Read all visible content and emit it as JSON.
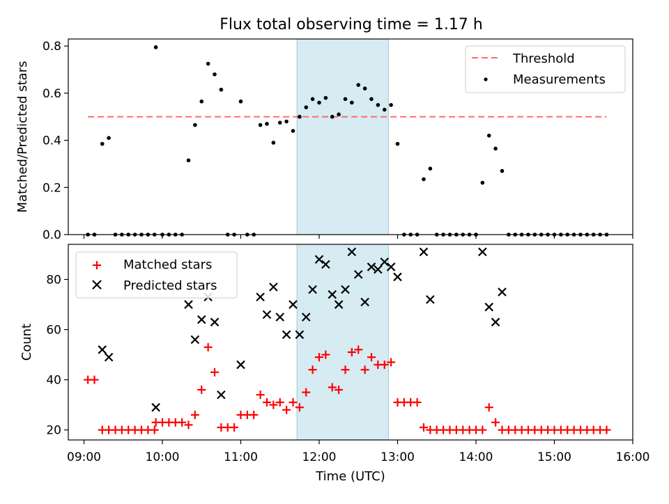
{
  "title": "Flux total observing time = 1.17 h",
  "chart_data": [
    {
      "type": "scatter",
      "panel": "top",
      "ylabel": "Matched/Predicted stars",
      "ylim": [
        0,
        0.83
      ],
      "yticks": [
        0.0,
        0.2,
        0.4,
        0.6,
        0.8
      ],
      "ytick_labels": [
        "0.0",
        "0.2",
        "0.4",
        "0.6",
        "0.8"
      ],
      "xlim": [
        "08:48",
        "16:00"
      ],
      "highlight_span": [
        "11:43",
        "12:53"
      ],
      "highlight_color": "#add8e6",
      "threshold": {
        "name": "Threshold",
        "value": 0.5,
        "x": [
          "09:03",
          "15:40"
        ],
        "color": "#ff6b6b"
      },
      "legend": {
        "position": "top-right",
        "entries": [
          "Threshold",
          "Measurements"
        ]
      },
      "series": [
        {
          "name": "Measurements",
          "color": "#000000",
          "marker": "dot",
          "points": [
            [
              "09:03",
              0
            ],
            [
              "09:08",
              0
            ],
            [
              "09:14",
              0.385
            ],
            [
              "09:19",
              0.41
            ],
            [
              "09:24",
              0
            ],
            [
              "09:29",
              0
            ],
            [
              "09:34",
              0
            ],
            [
              "09:39",
              0
            ],
            [
              "09:44",
              0
            ],
            [
              "09:49",
              0
            ],
            [
              "09:54",
              0
            ],
            [
              "09:55",
              0.795
            ],
            [
              "10:00",
              0
            ],
            [
              "10:05",
              0
            ],
            [
              "10:10",
              0
            ],
            [
              "10:15",
              0
            ],
            [
              "10:20",
              0.315
            ],
            [
              "10:25",
              0.465
            ],
            [
              "10:30",
              0.565
            ],
            [
              "10:35",
              0.725
            ],
            [
              "10:40",
              0.68
            ],
            [
              "10:45",
              0.615
            ],
            [
              "10:50",
              0
            ],
            [
              "10:55",
              0
            ],
            [
              "11:00",
              0.565
            ],
            [
              "11:05",
              0
            ],
            [
              "11:10",
              0
            ],
            [
              "11:15",
              0.465
            ],
            [
              "11:20",
              0.47
            ],
            [
              "11:25",
              0.39
            ],
            [
              "11:30",
              0.475
            ],
            [
              "11:35",
              0.48
            ],
            [
              "11:40",
              0.44
            ],
            [
              "11:45",
              0.5
            ],
            [
              "11:50",
              0.54
            ],
            [
              "11:55",
              0.575
            ],
            [
              "12:00",
              0.56
            ],
            [
              "12:05",
              0.58
            ],
            [
              "12:10",
              0.5
            ],
            [
              "12:15",
              0.51
            ],
            [
              "12:20",
              0.575
            ],
            [
              "12:25",
              0.56
            ],
            [
              "12:30",
              0.635
            ],
            [
              "12:35",
              0.62
            ],
            [
              "12:40",
              0.575
            ],
            [
              "12:45",
              0.55
            ],
            [
              "12:50",
              0.53
            ],
            [
              "12:55",
              0.55
            ],
            [
              "13:00",
              0.385
            ],
            [
              "13:05",
              0
            ],
            [
              "13:10",
              0
            ],
            [
              "13:15",
              0
            ],
            [
              "13:20",
              0.235
            ],
            [
              "13:25",
              0.28
            ],
            [
              "13:30",
              0
            ],
            [
              "13:35",
              0
            ],
            [
              "13:40",
              0
            ],
            [
              "13:45",
              0
            ],
            [
              "13:50",
              0
            ],
            [
              "13:55",
              0
            ],
            [
              "14:00",
              0
            ],
            [
              "14:05",
              0.22
            ],
            [
              "14:10",
              0.42
            ],
            [
              "14:15",
              0.365
            ],
            [
              "14:20",
              0.27
            ],
            [
              "14:25",
              0
            ],
            [
              "14:30",
              0
            ],
            [
              "14:35",
              0
            ],
            [
              "14:40",
              0
            ],
            [
              "14:45",
              0
            ],
            [
              "14:50",
              0
            ],
            [
              "14:55",
              0
            ],
            [
              "15:00",
              0
            ],
            [
              "15:05",
              0
            ],
            [
              "15:10",
              0
            ],
            [
              "15:15",
              0
            ],
            [
              "15:20",
              0
            ],
            [
              "15:25",
              0
            ],
            [
              "15:30",
              0
            ],
            [
              "15:35",
              0
            ],
            [
              "15:40",
              0
            ]
          ]
        }
      ]
    },
    {
      "type": "scatter",
      "panel": "bottom",
      "xlabel": "Time (UTC)",
      "ylabel": "Count",
      "ylim": [
        16,
        94
      ],
      "yticks": [
        20,
        40,
        60,
        80
      ],
      "ytick_labels": [
        "20",
        "40",
        "60",
        "80"
      ],
      "xlim": [
        "08:48",
        "16:00"
      ],
      "xticks": [
        "09:00",
        "10:00",
        "11:00",
        "12:00",
        "13:00",
        "14:00",
        "15:00",
        "16:00"
      ],
      "xtick_labels": [
        "09:00",
        "10:00",
        "11:00",
        "12:00",
        "13:00",
        "14:00",
        "15:00",
        "16:00"
      ],
      "highlight_span": [
        "11:43",
        "12:53"
      ],
      "highlight_color": "#add8e6",
      "legend": {
        "position": "top-left",
        "entries": [
          "Matched stars",
          "Predicted stars"
        ]
      },
      "series": [
        {
          "name": "Matched stars",
          "color": "#ff0000",
          "marker": "plus",
          "points": [
            [
              "09:03",
              40
            ],
            [
              "09:08",
              40
            ],
            [
              "09:14",
              20
            ],
            [
              "09:19",
              20
            ],
            [
              "09:24",
              20
            ],
            [
              "09:29",
              20
            ],
            [
              "09:34",
              20
            ],
            [
              "09:39",
              20
            ],
            [
              "09:44",
              20
            ],
            [
              "09:49",
              20
            ],
            [
              "09:54",
              20
            ],
            [
              "09:55",
              23
            ],
            [
              "10:00",
              23
            ],
            [
              "10:05",
              23
            ],
            [
              "10:10",
              23
            ],
            [
              "10:15",
              23
            ],
            [
              "10:20",
              22
            ],
            [
              "10:25",
              26
            ],
            [
              "10:30",
              36
            ],
            [
              "10:35",
              53
            ],
            [
              "10:40",
              43
            ],
            [
              "10:45",
              21
            ],
            [
              "10:50",
              21
            ],
            [
              "10:55",
              21
            ],
            [
              "11:00",
              26
            ],
            [
              "11:05",
              26
            ],
            [
              "11:10",
              26
            ],
            [
              "11:15",
              34
            ],
            [
              "11:20",
              31
            ],
            [
              "11:25",
              30
            ],
            [
              "11:30",
              31
            ],
            [
              "11:35",
              28
            ],
            [
              "11:40",
              31
            ],
            [
              "11:45",
              29
            ],
            [
              "11:50",
              35
            ],
            [
              "11:55",
              44
            ],
            [
              "12:00",
              49
            ],
            [
              "12:05",
              50
            ],
            [
              "12:10",
              37
            ],
            [
              "12:15",
              36
            ],
            [
              "12:20",
              44
            ],
            [
              "12:25",
              51
            ],
            [
              "12:30",
              52
            ],
            [
              "12:35",
              44
            ],
            [
              "12:40",
              49
            ],
            [
              "12:45",
              46
            ],
            [
              "12:50",
              46
            ],
            [
              "12:55",
              47
            ],
            [
              "13:00",
              31
            ],
            [
              "13:05",
              31
            ],
            [
              "13:10",
              31
            ],
            [
              "13:15",
              31
            ],
            [
              "13:20",
              21
            ],
            [
              "13:25",
              20
            ],
            [
              "13:30",
              20
            ],
            [
              "13:35",
              20
            ],
            [
              "13:40",
              20
            ],
            [
              "13:45",
              20
            ],
            [
              "13:50",
              20
            ],
            [
              "13:55",
              20
            ],
            [
              "14:00",
              20
            ],
            [
              "14:05",
              20
            ],
            [
              "14:10",
              29
            ],
            [
              "14:15",
              23
            ],
            [
              "14:20",
              20
            ],
            [
              "14:25",
              20
            ],
            [
              "14:30",
              20
            ],
            [
              "14:35",
              20
            ],
            [
              "14:40",
              20
            ],
            [
              "14:45",
              20
            ],
            [
              "14:50",
              20
            ],
            [
              "14:55",
              20
            ],
            [
              "15:00",
              20
            ],
            [
              "15:05",
              20
            ],
            [
              "15:10",
              20
            ],
            [
              "15:15",
              20
            ],
            [
              "15:20",
              20
            ],
            [
              "15:25",
              20
            ],
            [
              "15:30",
              20
            ],
            [
              "15:35",
              20
            ],
            [
              "15:40",
              20
            ]
          ]
        },
        {
          "name": "Predicted stars",
          "color": "#000000",
          "marker": "x",
          "points": [
            [
              "09:14",
              52
            ],
            [
              "09:19",
              49
            ],
            [
              "09:55",
              29
            ],
            [
              "10:20",
              70
            ],
            [
              "10:25",
              56
            ],
            [
              "10:30",
              64
            ],
            [
              "10:35",
              73
            ],
            [
              "10:40",
              63
            ],
            [
              "10:45",
              34
            ],
            [
              "11:00",
              46
            ],
            [
              "11:15",
              73
            ],
            [
              "11:20",
              66
            ],
            [
              "11:25",
              77
            ],
            [
              "11:30",
              65
            ],
            [
              "11:35",
              58
            ],
            [
              "11:40",
              70
            ],
            [
              "11:45",
              58
            ],
            [
              "11:50",
              65
            ],
            [
              "11:55",
              76
            ],
            [
              "12:00",
              88
            ],
            [
              "12:05",
              86
            ],
            [
              "12:10",
              74
            ],
            [
              "12:15",
              70
            ],
            [
              "12:20",
              76
            ],
            [
              "12:25",
              91
            ],
            [
              "12:30",
              82
            ],
            [
              "12:35",
              71
            ],
            [
              "12:40",
              85
            ],
            [
              "12:45",
              84
            ],
            [
              "12:50",
              87
            ],
            [
              "12:55",
              85
            ],
            [
              "13:00",
              81
            ],
            [
              "13:20",
              91
            ],
            [
              "13:25",
              72
            ],
            [
              "14:05",
              91
            ],
            [
              "14:10",
              69
            ],
            [
              "14:15",
              63
            ],
            [
              "14:20",
              75
            ]
          ]
        }
      ]
    }
  ]
}
